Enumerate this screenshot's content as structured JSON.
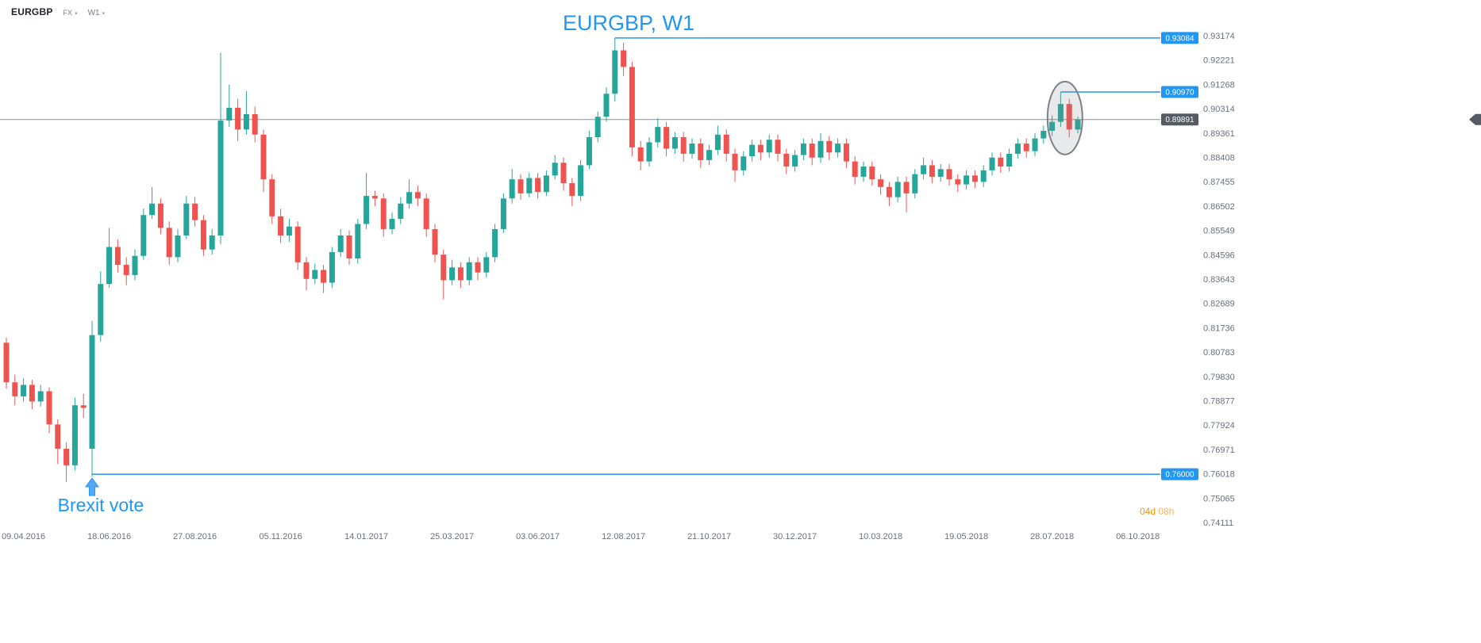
{
  "header": {
    "symbol": "EURGBP",
    "market": "FX",
    "timeframe": "W1"
  },
  "title": "EURGBP, W1",
  "countdown": {
    "days": "04d",
    "hours": "08h"
  },
  "colors": {
    "up": "#26a69a",
    "down": "#ef5350",
    "accent_blue": "#2196f3",
    "axis_text": "#696f7a",
    "current_line": "#8b9097",
    "current_badge_bg": "#555a63",
    "badge_text": "#ffffff",
    "ellipse_stroke": "#7d8086"
  },
  "chart_data": {
    "type": "candlestick",
    "title": "EURGBP, W1",
    "symbol": "EURGBP",
    "timeframe": "W1",
    "legend_position": "none",
    "grid": false,
    "x_tick_labels": [
      "09.04.2016",
      "18.06.2016",
      "27.08.2016",
      "05.11.2016",
      "14.01.2017",
      "25.03.2017",
      "03.06.2017",
      "12.08.2017",
      "21.10.2017",
      "30.12.2017",
      "10.03.2018",
      "19.05.2018",
      "28.07.2018",
      "06.10.2018"
    ],
    "x_tick_start_index": 2,
    "x_tick_every": 10,
    "y_ticks": [
      0.93174,
      0.92221,
      0.91268,
      0.90314,
      0.89361,
      0.88408,
      0.87455,
      0.86502,
      0.85549,
      0.84596,
      0.83643,
      0.82689,
      0.81736,
      0.80783,
      0.7983,
      0.78877,
      0.77924,
      0.76971,
      0.76018,
      0.75065,
      0.74111
    ],
    "ylim": [
      0.74111,
      0.93174
    ],
    "current_price": 0.89891,
    "current_price_label": "0.89891",
    "levels": [
      {
        "value": 0.93084,
        "label": "0.93084",
        "start_index": 71
      },
      {
        "value": 0.9097,
        "label": "0.90970",
        "start_index": 123
      },
      {
        "value": 0.76,
        "label": "0.76000",
        "start_index": 10
      }
    ],
    "annotations": {
      "ellipse": {
        "center_index": 123.5,
        "center_price": 0.8995
      },
      "arrow": {
        "text": "Brexit vote",
        "index": 10,
        "price": 0.7585
      }
    },
    "candles": [
      [
        0.8115,
        0.8135,
        0.7935,
        0.796
      ],
      [
        0.796,
        0.799,
        0.787,
        0.7905
      ],
      [
        0.7905,
        0.7975,
        0.7885,
        0.795
      ],
      [
        0.795,
        0.797,
        0.7855,
        0.7885
      ],
      [
        0.7885,
        0.795,
        0.7865,
        0.7925
      ],
      [
        0.7925,
        0.794,
        0.776,
        0.7795
      ],
      [
        0.7795,
        0.7815,
        0.764,
        0.77
      ],
      [
        0.77,
        0.7725,
        0.757,
        0.7635
      ],
      [
        0.7635,
        0.79,
        0.7615,
        0.787
      ],
      [
        0.787,
        0.7915,
        0.782,
        0.786
      ],
      [
        0.77,
        0.82,
        0.759,
        0.8145
      ],
      [
        0.8145,
        0.8395,
        0.812,
        0.8345
      ],
      [
        0.8345,
        0.8565,
        0.833,
        0.849
      ],
      [
        0.849,
        0.852,
        0.839,
        0.842
      ],
      [
        0.842,
        0.845,
        0.834,
        0.838
      ],
      [
        0.838,
        0.848,
        0.836,
        0.8455
      ],
      [
        0.8455,
        0.864,
        0.844,
        0.8615
      ],
      [
        0.8615,
        0.8725,
        0.86,
        0.866
      ],
      [
        0.866,
        0.868,
        0.854,
        0.8565
      ],
      [
        0.8565,
        0.859,
        0.842,
        0.845
      ],
      [
        0.845,
        0.856,
        0.843,
        0.8535
      ],
      [
        0.8535,
        0.869,
        0.852,
        0.866
      ],
      [
        0.866,
        0.8685,
        0.857,
        0.8595
      ],
      [
        0.8595,
        0.8615,
        0.8455,
        0.848
      ],
      [
        0.848,
        0.856,
        0.846,
        0.8535
      ],
      [
        0.8535,
        0.925,
        0.85,
        0.8985
      ],
      [
        0.8985,
        0.9125,
        0.896,
        0.9035
      ],
      [
        0.9035,
        0.907,
        0.8905,
        0.895
      ],
      [
        0.895,
        0.91,
        0.893,
        0.901
      ],
      [
        0.901,
        0.904,
        0.89,
        0.893
      ],
      [
        0.893,
        0.895,
        0.8705,
        0.8755
      ],
      [
        0.8755,
        0.8775,
        0.858,
        0.861
      ],
      [
        0.861,
        0.864,
        0.8505,
        0.8535
      ],
      [
        0.8535,
        0.86,
        0.851,
        0.857
      ],
      [
        0.857,
        0.859,
        0.84,
        0.843
      ],
      [
        0.843,
        0.845,
        0.832,
        0.8365
      ],
      [
        0.8365,
        0.8425,
        0.8345,
        0.84
      ],
      [
        0.84,
        0.842,
        0.831,
        0.835
      ],
      [
        0.835,
        0.849,
        0.833,
        0.847
      ],
      [
        0.847,
        0.856,
        0.845,
        0.8535
      ],
      [
        0.8535,
        0.8555,
        0.842,
        0.8445
      ],
      [
        0.8445,
        0.86,
        0.8425,
        0.858
      ],
      [
        0.858,
        0.878,
        0.856,
        0.869
      ],
      [
        0.869,
        0.871,
        0.865,
        0.868
      ],
      [
        0.868,
        0.87,
        0.853,
        0.856
      ],
      [
        0.856,
        0.8625,
        0.854,
        0.86
      ],
      [
        0.86,
        0.8685,
        0.858,
        0.866
      ],
      [
        0.866,
        0.8755,
        0.864,
        0.8705
      ],
      [
        0.8705,
        0.873,
        0.865,
        0.868
      ],
      [
        0.868,
        0.87,
        0.853,
        0.856
      ],
      [
        0.856,
        0.858,
        0.843,
        0.846
      ],
      [
        0.846,
        0.848,
        0.8285,
        0.836
      ],
      [
        0.836,
        0.844,
        0.834,
        0.841
      ],
      [
        0.841,
        0.843,
        0.833,
        0.836
      ],
      [
        0.836,
        0.845,
        0.834,
        0.843
      ],
      [
        0.843,
        0.845,
        0.836,
        0.839
      ],
      [
        0.839,
        0.847,
        0.837,
        0.845
      ],
      [
        0.845,
        0.858,
        0.843,
        0.856
      ],
      [
        0.856,
        0.87,
        0.8545,
        0.868
      ],
      [
        0.868,
        0.8795,
        0.866,
        0.8755
      ],
      [
        0.8755,
        0.8775,
        0.8675,
        0.87
      ],
      [
        0.87,
        0.878,
        0.8685,
        0.876
      ],
      [
        0.876,
        0.878,
        0.868,
        0.8705
      ],
      [
        0.8705,
        0.879,
        0.869,
        0.877
      ],
      [
        0.877,
        0.885,
        0.8755,
        0.882
      ],
      [
        0.882,
        0.884,
        0.871,
        0.874
      ],
      [
        0.874,
        0.876,
        0.865,
        0.869
      ],
      [
        0.869,
        0.883,
        0.867,
        0.881
      ],
      [
        0.881,
        0.8945,
        0.8795,
        0.892
      ],
      [
        0.892,
        0.902,
        0.89,
        0.9
      ],
      [
        0.9,
        0.9115,
        0.898,
        0.909
      ],
      [
        0.909,
        0.93084,
        0.906,
        0.926
      ],
      [
        0.926,
        0.929,
        0.916,
        0.9195
      ],
      [
        0.9195,
        0.9215,
        0.8845,
        0.888
      ],
      [
        0.888,
        0.8905,
        0.879,
        0.8825
      ],
      [
        0.8825,
        0.892,
        0.8805,
        0.89
      ],
      [
        0.89,
        0.8995,
        0.888,
        0.896
      ],
      [
        0.896,
        0.898,
        0.8845,
        0.8875
      ],
      [
        0.8875,
        0.894,
        0.8855,
        0.892
      ],
      [
        0.892,
        0.894,
        0.8825,
        0.8855
      ],
      [
        0.8855,
        0.8915,
        0.8835,
        0.8895
      ],
      [
        0.8895,
        0.8915,
        0.88,
        0.883
      ],
      [
        0.883,
        0.889,
        0.881,
        0.887
      ],
      [
        0.887,
        0.8965,
        0.885,
        0.893
      ],
      [
        0.893,
        0.895,
        0.8825,
        0.8855
      ],
      [
        0.8855,
        0.8875,
        0.8745,
        0.879
      ],
      [
        0.879,
        0.8865,
        0.877,
        0.8845
      ],
      [
        0.8845,
        0.891,
        0.8825,
        0.889
      ],
      [
        0.889,
        0.891,
        0.883,
        0.886
      ],
      [
        0.886,
        0.893,
        0.884,
        0.891
      ],
      [
        0.891,
        0.893,
        0.8825,
        0.8855
      ],
      [
        0.8855,
        0.8875,
        0.8775,
        0.8805
      ],
      [
        0.8805,
        0.887,
        0.8785,
        0.885
      ],
      [
        0.885,
        0.8915,
        0.883,
        0.8895
      ],
      [
        0.8895,
        0.8915,
        0.881,
        0.884
      ],
      [
        0.884,
        0.8935,
        0.882,
        0.8905
      ],
      [
        0.8905,
        0.8925,
        0.883,
        0.886
      ],
      [
        0.886,
        0.8915,
        0.884,
        0.8895
      ],
      [
        0.8895,
        0.8915,
        0.88,
        0.8825
      ],
      [
        0.8825,
        0.8845,
        0.8735,
        0.8765
      ],
      [
        0.8765,
        0.8825,
        0.8745,
        0.8805
      ],
      [
        0.8805,
        0.8825,
        0.873,
        0.8755
      ],
      [
        0.8755,
        0.8775,
        0.8695,
        0.8725
      ],
      [
        0.8725,
        0.8745,
        0.865,
        0.8685
      ],
      [
        0.8685,
        0.8765,
        0.8665,
        0.8745
      ],
      [
        0.8745,
        0.8765,
        0.8625,
        0.87
      ],
      [
        0.87,
        0.8795,
        0.868,
        0.8775
      ],
      [
        0.8775,
        0.884,
        0.8755,
        0.881
      ],
      [
        0.881,
        0.883,
        0.874,
        0.8765
      ],
      [
        0.8765,
        0.8815,
        0.8745,
        0.8795
      ],
      [
        0.8795,
        0.8815,
        0.873,
        0.8755
      ],
      [
        0.8755,
        0.8775,
        0.8705,
        0.8735
      ],
      [
        0.8735,
        0.879,
        0.8715,
        0.877
      ],
      [
        0.877,
        0.879,
        0.872,
        0.8745
      ],
      [
        0.8745,
        0.881,
        0.8725,
        0.879
      ],
      [
        0.879,
        0.886,
        0.877,
        0.884
      ],
      [
        0.884,
        0.886,
        0.878,
        0.8805
      ],
      [
        0.8805,
        0.8875,
        0.8785,
        0.8855
      ],
      [
        0.8855,
        0.8915,
        0.8835,
        0.8895
      ],
      [
        0.8895,
        0.8915,
        0.884,
        0.8865
      ],
      [
        0.8865,
        0.8935,
        0.8845,
        0.8915
      ],
      [
        0.8915,
        0.8965,
        0.8895,
        0.8945
      ],
      [
        0.8945,
        0.9005,
        0.8925,
        0.898
      ],
      [
        0.898,
        0.9097,
        0.896,
        0.905
      ],
      [
        0.905,
        0.907,
        0.892,
        0.895
      ],
      [
        0.895,
        0.9,
        0.8935,
        0.89891
      ]
    ]
  }
}
